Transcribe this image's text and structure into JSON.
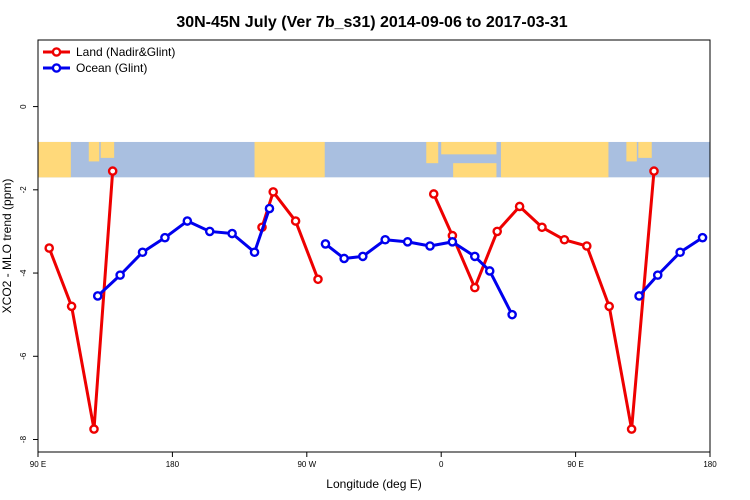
{
  "chart_data": {
    "type": "line",
    "title": "30N-45N July (Ver 7b_s31)   2014-09-06 to 2017-03-31",
    "xlabel": "Longitude (deg E)",
    "ylabel": "XCO2 - MLO trend (ppm)",
    "xlim": [
      90,
      540
    ],
    "ylim": [
      -8.3,
      1.6
    ],
    "x_ticks": [
      {
        "value": 90,
        "label": "90 E"
      },
      {
        "value": 180,
        "label": "180"
      },
      {
        "value": 270,
        "label": "90 W"
      },
      {
        "value": 360,
        "label": "0"
      },
      {
        "value": 450,
        "label": "90 E"
      },
      {
        "value": 540,
        "label": "180"
      }
    ],
    "y_ticks": [
      {
        "value": 0,
        "label": "0"
      },
      {
        "value": -2,
        "label": "-2"
      },
      {
        "value": -4,
        "label": "-4"
      },
      {
        "value": -6,
        "label": "-6"
      },
      {
        "value": -8,
        "label": "-8"
      }
    ],
    "legend_position": "top-left",
    "map_band": {
      "y_top": -0.85,
      "y_bottom": -1.7,
      "ocean_color": "#a9bfe0",
      "land_color": "#ffd97a"
    },
    "series": [
      {
        "name": "Land (Nadir&Glint)",
        "color": "#ee0000",
        "segments": [
          [
            [
              97.5,
              -3.4
            ],
            [
              112.5,
              -4.8
            ],
            [
              127.5,
              -7.75
            ],
            [
              140,
              -1.55
            ]
          ],
          [
            [
              240,
              -2.9
            ],
            [
              247.5,
              -2.05
            ],
            [
              262.5,
              -2.75
            ],
            [
              277.5,
              -4.15
            ]
          ],
          [
            [
              355,
              -2.1
            ],
            [
              367.5,
              -3.1
            ],
            [
              382.5,
              -4.35
            ],
            [
              397.5,
              -3.0
            ],
            [
              412.5,
              -2.4
            ],
            [
              427.5,
              -2.9
            ],
            [
              442.5,
              -3.2
            ],
            [
              457.5,
              -3.35
            ],
            [
              472.5,
              -4.8
            ],
            [
              487.5,
              -7.75
            ],
            [
              502.5,
              -1.55
            ]
          ]
        ]
      },
      {
        "name": "Ocean (Glint)",
        "color": "#0000ee",
        "segments": [
          [
            [
              130,
              -4.55
            ],
            [
              145,
              -4.05
            ],
            [
              160,
              -3.5
            ],
            [
              175,
              -3.15
            ],
            [
              190,
              -2.75
            ],
            [
              205,
              -3.0
            ],
            [
              220,
              -3.05
            ],
            [
              235,
              -3.5
            ],
            [
              245,
              -2.45
            ]
          ],
          [
            [
              282.5,
              -3.3
            ],
            [
              295,
              -3.65
            ],
            [
              307.5,
              -3.6
            ],
            [
              322.5,
              -3.2
            ],
            [
              337.5,
              -3.25
            ],
            [
              352.5,
              -3.35
            ],
            [
              367.5,
              -3.25
            ],
            [
              382.5,
              -3.6
            ],
            [
              392.5,
              -3.95
            ],
            [
              407.5,
              -5.0
            ]
          ],
          [
            [
              492.5,
              -4.55
            ],
            [
              505,
              -4.05
            ],
            [
              520,
              -3.5
            ],
            [
              535,
              -3.15
            ]
          ]
        ]
      }
    ]
  }
}
